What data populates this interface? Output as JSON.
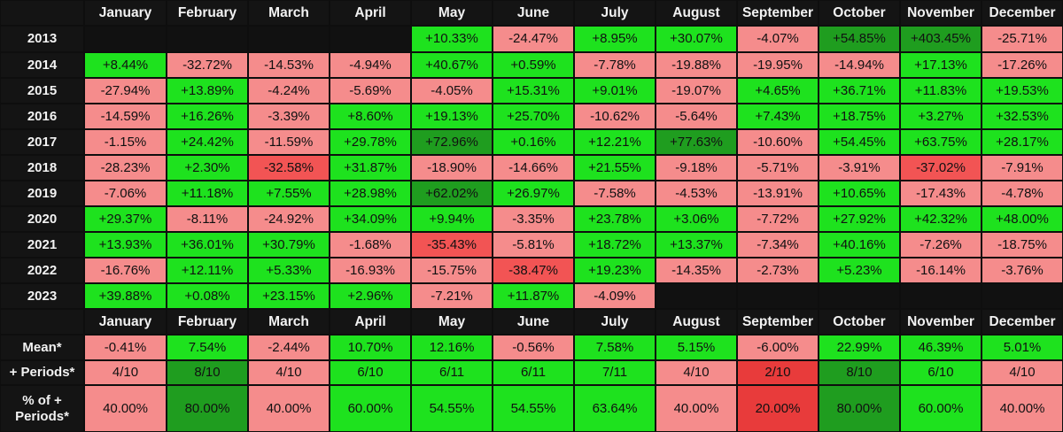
{
  "months": [
    "January",
    "February",
    "March",
    "April",
    "May",
    "June",
    "July",
    "August",
    "September",
    "October",
    "November",
    "December"
  ],
  "colors": {
    "dark_green": "#1f9d1f",
    "green": "#1ee21e",
    "light_red": "#f58c8c",
    "red": "#f25454",
    "deep_red": "#e83b3b",
    "background": "#0e0e0e",
    "header_text": "#f2f2f2"
  },
  "chart_data": {
    "type": "heatmap",
    "rows": [
      "2013",
      "2014",
      "2015",
      "2016",
      "2017",
      "2018",
      "2019",
      "2020",
      "2021",
      "2022",
      "2023"
    ],
    "columns": [
      "January",
      "February",
      "March",
      "April",
      "May",
      "June",
      "July",
      "August",
      "September",
      "October",
      "November",
      "December"
    ],
    "cells": [
      [
        "",
        "",
        "",
        "",
        "+10.33%",
        "-24.47%",
        "+8.95%",
        "+30.07%",
        "-4.07%",
        "+54.85%",
        "+403.45%",
        "-25.71%"
      ],
      [
        "+8.44%",
        "-32.72%",
        "-14.53%",
        "-4.94%",
        "+40.67%",
        "+0.59%",
        "-7.78%",
        "-19.88%",
        "-19.95%",
        "-14.94%",
        "+17.13%",
        "-17.26%"
      ],
      [
        "-27.94%",
        "+13.89%",
        "-4.24%",
        "-5.69%",
        "-4.05%",
        "+15.31%",
        "+9.01%",
        "-19.07%",
        "+4.65%",
        "+36.71%",
        "+11.83%",
        "+19.53%"
      ],
      [
        "-14.59%",
        "+16.26%",
        "-3.39%",
        "+8.60%",
        "+19.13%",
        "+25.70%",
        "-10.62%",
        "-5.64%",
        "+7.43%",
        "+18.75%",
        "+3.27%",
        "+32.53%"
      ],
      [
        "-1.15%",
        "+24.42%",
        "-11.59%",
        "+29.78%",
        "+72.96%",
        "+0.16%",
        "+12.21%",
        "+77.63%",
        "-10.60%",
        "+54.45%",
        "+63.75%",
        "+28.17%"
      ],
      [
        "-28.23%",
        "+2.30%",
        "-32.58%",
        "+31.87%",
        "-18.90%",
        "-14.66%",
        "+21.55%",
        "-9.18%",
        "-5.71%",
        "-3.91%",
        "-37.02%",
        "-7.91%"
      ],
      [
        "-7.06%",
        "+11.18%",
        "+7.55%",
        "+28.98%",
        "+62.02%",
        "+26.97%",
        "-7.58%",
        "-4.53%",
        "-13.91%",
        "+10.65%",
        "-17.43%",
        "-4.78%"
      ],
      [
        "+29.37%",
        "-8.11%",
        "-24.92%",
        "+34.09%",
        "+9.94%",
        "-3.35%",
        "+23.78%",
        "+3.06%",
        "-7.72%",
        "+27.92%",
        "+42.32%",
        "+48.00%"
      ],
      [
        "+13.93%",
        "+36.01%",
        "+30.79%",
        "-1.68%",
        "-35.43%",
        "-5.81%",
        "+18.72%",
        "+13.37%",
        "-7.34%",
        "+40.16%",
        "-7.26%",
        "-18.75%"
      ],
      [
        "-16.76%",
        "+12.11%",
        "+5.33%",
        "-16.93%",
        "-15.75%",
        "-38.47%",
        "+19.23%",
        "-14.35%",
        "-2.73%",
        "+5.23%",
        "-16.14%",
        "-3.76%"
      ],
      [
        "+39.88%",
        "+0.08%",
        "+23.15%",
        "+2.96%",
        "-7.21%",
        "+11.87%",
        "-4.09%",
        "",
        "",
        "",
        "",
        ""
      ]
    ],
    "cell_colors": [
      [
        "",
        "",
        "",
        "",
        "green",
        "light_red",
        "green",
        "green",
        "light_red",
        "dark_green",
        "dark_green",
        "light_red"
      ],
      [
        "green",
        "light_red",
        "light_red",
        "light_red",
        "green",
        "green",
        "light_red",
        "light_red",
        "light_red",
        "light_red",
        "green",
        "light_red"
      ],
      [
        "light_red",
        "green",
        "light_red",
        "light_red",
        "light_red",
        "green",
        "green",
        "light_red",
        "green",
        "green",
        "green",
        "green"
      ],
      [
        "light_red",
        "green",
        "light_red",
        "green",
        "green",
        "green",
        "light_red",
        "light_red",
        "green",
        "green",
        "green",
        "green"
      ],
      [
        "light_red",
        "green",
        "light_red",
        "green",
        "dark_green",
        "green",
        "green",
        "dark_green",
        "light_red",
        "green",
        "green",
        "green"
      ],
      [
        "light_red",
        "green",
        "red",
        "green",
        "light_red",
        "light_red",
        "green",
        "light_red",
        "light_red",
        "light_red",
        "red",
        "light_red"
      ],
      [
        "light_red",
        "green",
        "green",
        "green",
        "dark_green",
        "green",
        "light_red",
        "light_red",
        "light_red",
        "green",
        "light_red",
        "light_red"
      ],
      [
        "green",
        "light_red",
        "light_red",
        "green",
        "green",
        "light_red",
        "green",
        "green",
        "light_red",
        "green",
        "green",
        "green"
      ],
      [
        "green",
        "green",
        "green",
        "light_red",
        "red",
        "light_red",
        "green",
        "green",
        "light_red",
        "green",
        "light_red",
        "light_red"
      ],
      [
        "light_red",
        "green",
        "green",
        "light_red",
        "light_red",
        "red",
        "green",
        "light_red",
        "light_red",
        "green",
        "light_red",
        "light_red"
      ],
      [
        "green",
        "green",
        "green",
        "green",
        "light_red",
        "green",
        "light_red",
        "",
        "",
        "",
        "",
        ""
      ]
    ],
    "summary": [
      {
        "label": "Mean*",
        "values": [
          "-0.41%",
          "7.54%",
          "-2.44%",
          "10.70%",
          "12.16%",
          "-0.56%",
          "7.58%",
          "5.15%",
          "-6.00%",
          "22.99%",
          "46.39%",
          "5.01%"
        ],
        "colors": [
          "light_red",
          "green",
          "light_red",
          "green",
          "green",
          "light_red",
          "green",
          "green",
          "light_red",
          "green",
          "green",
          "green"
        ]
      },
      {
        "label": "+ Periods*",
        "values": [
          "4/10",
          "8/10",
          "4/10",
          "6/10",
          "6/11",
          "6/11",
          "7/11",
          "4/10",
          "2/10",
          "8/10",
          "6/10",
          "4/10"
        ],
        "colors": [
          "light_red",
          "dark_green",
          "light_red",
          "green",
          "green",
          "green",
          "green",
          "light_red",
          "deep_red",
          "dark_green",
          "green",
          "light_red"
        ]
      },
      {
        "label": "% of +\nPeriods*",
        "values": [
          "40.00%",
          "80.00%",
          "40.00%",
          "60.00%",
          "54.55%",
          "54.55%",
          "63.64%",
          "40.00%",
          "20.00%",
          "80.00%",
          "60.00%",
          "40.00%"
        ],
        "colors": [
          "light_red",
          "dark_green",
          "light_red",
          "green",
          "green",
          "green",
          "green",
          "light_red",
          "deep_red",
          "dark_green",
          "green",
          "light_red"
        ]
      }
    ]
  }
}
